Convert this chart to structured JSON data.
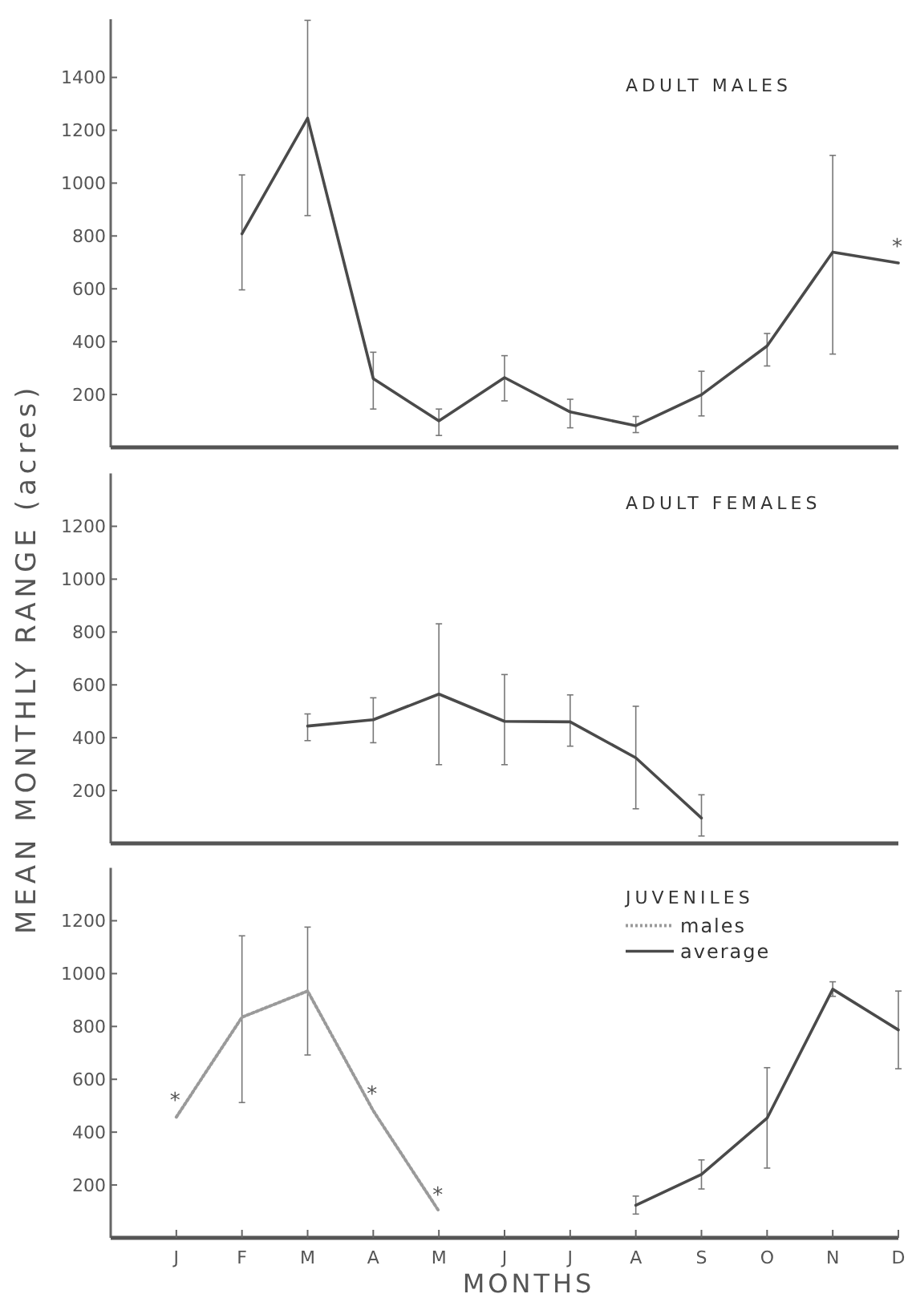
{
  "chart_data": [
    {
      "type": "line",
      "title": "ADULT MALES",
      "categories": [
        null,
        null,
        null,
        null,
        null,
        null,
        null,
        null,
        null,
        null,
        null,
        null
      ],
      "ylim": [
        0,
        1620
      ],
      "yticks": [
        200,
        400,
        600,
        800,
        1000,
        1200,
        1400
      ],
      "series": [
        {
          "color": "#4a4a4a",
          "line_style": "solid",
          "values": [
            null,
            808,
            1246,
            260,
            100,
            264,
            134,
            82,
            199,
            384,
            739,
            698
          ],
          "errors": [
            null,
            [
              596,
              1031
            ],
            [
              877,
              1616
            ],
            [
              145,
              360
            ],
            [
              45,
              145
            ],
            [
              176,
              347
            ],
            [
              74,
              182
            ],
            [
              56,
              117
            ],
            [
              119,
              288
            ],
            [
              308,
              431
            ],
            [
              353,
              1105
            ],
            null
          ],
          "value_labels": [
            null,
            null,
            null,
            null,
            null,
            null,
            null,
            null,
            null,
            null,
            null,
            "*"
          ]
        }
      ]
    },
    {
      "type": "line",
      "title": "ADULT FEMALES",
      "ylabel": "MEAN MONTHLY RANGE (acres)",
      "categories": [
        null,
        null,
        null,
        null,
        null,
        null,
        null,
        null,
        null,
        null,
        null,
        null
      ],
      "ylim": [
        0,
        1400
      ],
      "yticks": [
        200,
        400,
        600,
        800,
        1000,
        1200
      ],
      "series": [
        {
          "color": "#4a4a4a",
          "line_style": "solid",
          "values": [
            null,
            null,
            444,
            468,
            565,
            462,
            460,
            324,
            96,
            null,
            null,
            null
          ],
          "errors": [
            null,
            null,
            [
              389,
              490
            ],
            [
              381,
              551
            ],
            [
              298,
              831
            ],
            [
              298,
              639
            ],
            [
              368,
              562
            ],
            [
              131,
              519
            ],
            [
              28,
              184
            ],
            null,
            null,
            null
          ]
        }
      ]
    },
    {
      "type": "line",
      "title": "JUVENILES",
      "xlabel": "MONTHS",
      "categories": [
        "J",
        "F",
        "M",
        "A",
        "M",
        "J",
        "J",
        "A",
        "S",
        "O",
        "N",
        "D"
      ],
      "ylim": [
        0,
        1400
      ],
      "yticks": [
        200,
        400,
        600,
        800,
        1000,
        1200
      ],
      "legend": "top right",
      "series": [
        {
          "name": "males",
          "color": "#9a9a9a",
          "line_style": "dotted",
          "values": [
            457,
            835,
            934,
            481,
            101,
            null,
            null,
            null,
            null,
            null,
            null,
            null
          ],
          "errors": [
            null,
            [
              512,
              1143
            ],
            [
              692,
              1176
            ],
            null,
            null,
            null,
            null,
            null,
            null,
            null,
            null,
            null
          ],
          "value_labels": [
            "*",
            null,
            null,
            "*",
            "*",
            null,
            null,
            null,
            null,
            null,
            null,
            null
          ]
        },
        {
          "name": "average",
          "color": "#4a4a4a",
          "line_style": "solid",
          "values": [
            null,
            null,
            null,
            null,
            null,
            null,
            null,
            123,
            240,
            453,
            941,
            787
          ],
          "errors": [
            null,
            null,
            null,
            null,
            null,
            null,
            null,
            [
              90,
              158
            ],
            [
              185,
              295
            ],
            [
              264,
              644
            ],
            [
              914,
              969
            ],
            [
              640,
              934
            ]
          ]
        }
      ]
    }
  ]
}
